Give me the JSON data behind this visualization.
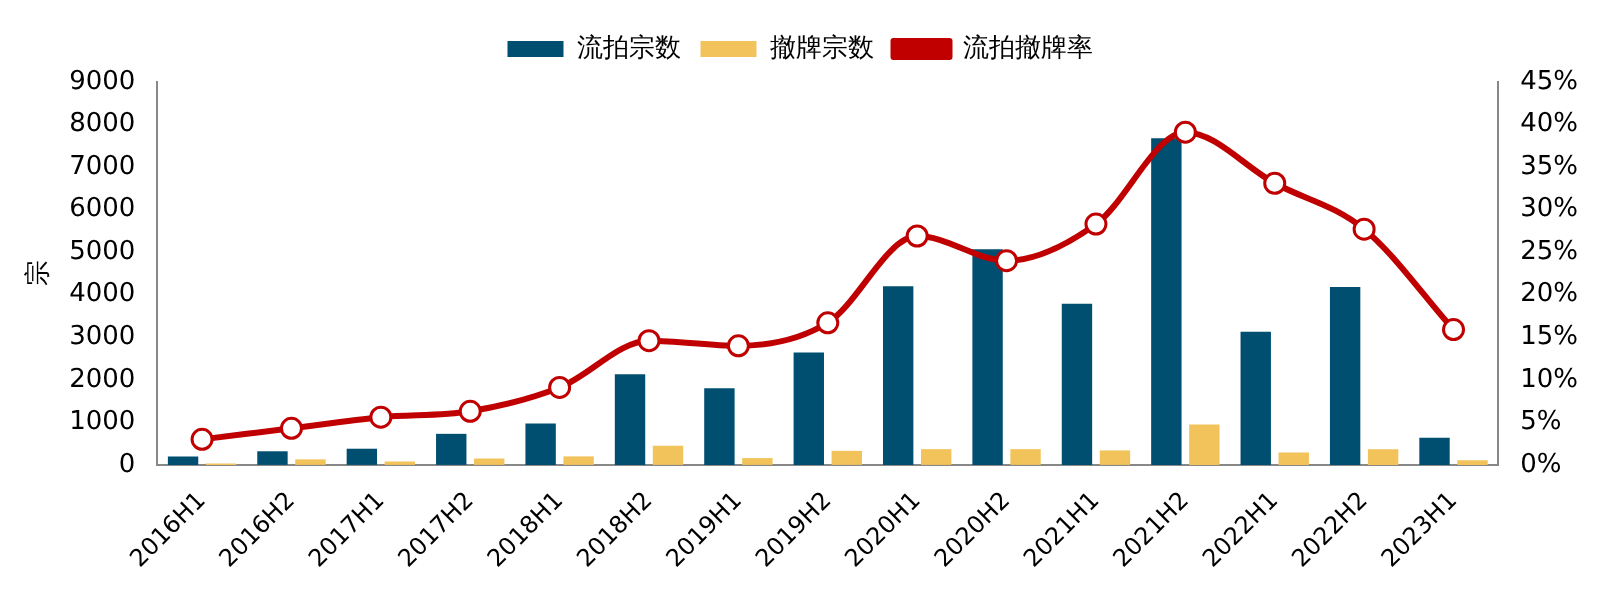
{
  "chart_data": {
    "type": "bar",
    "ylabel": "宗",
    "categories": [
      "2016H1",
      "2016H2",
      "2017H1",
      "2017H2",
      "2018H1",
      "2018H2",
      "2019H1",
      "2019H2",
      "2020H1",
      "2020H2",
      "2021H1",
      "2021H2",
      "2022H1",
      "2022H2",
      "2023H1"
    ],
    "series": [
      {
        "name": "流拍宗数",
        "color": "#004f71",
        "values": [
          200,
          320,
          380,
          730,
          970,
          2130,
          1800,
          2640,
          4200,
          5070,
          3790,
          7680,
          3130,
          4180,
          640
        ]
      },
      {
        "name": "撤牌宗数",
        "color": "#f2c35a",
        "values": [
          30,
          130,
          80,
          150,
          200,
          450,
          160,
          330,
          370,
          370,
          340,
          950,
          290,
          370,
          110
        ]
      },
      {
        "name": "流拍撤牌率",
        "type": "line",
        "axis": "y2",
        "color": "#c00000",
        "marker": "circle",
        "values": [
          3.0,
          4.3,
          5.6,
          6.3,
          9.1,
          14.6,
          14.0,
          16.7,
          26.9,
          24.0,
          28.3,
          39.1,
          33.1,
          27.7,
          15.9
        ]
      }
    ],
    "ylim": [
      0,
      9000
    ],
    "yticks": [
      0,
      1000,
      2000,
      3000,
      4000,
      5000,
      6000,
      7000,
      8000,
      9000
    ],
    "y2lim": [
      0,
      45
    ],
    "y2ticks": [
      {
        "value": 0,
        "label": "0%"
      },
      {
        "value": 5,
        "label": "5%"
      },
      {
        "value": 10,
        "label": "10%"
      },
      {
        "value": 15,
        "label": "15%"
      },
      {
        "value": 20,
        "label": "20%"
      },
      {
        "value": 25,
        "label": "25%"
      },
      {
        "value": 30,
        "label": "30%"
      },
      {
        "value": 35,
        "label": "35%"
      },
      {
        "value": 40,
        "label": "40%"
      },
      {
        "value": 45,
        "label": "45%"
      }
    ],
    "grid": false,
    "legend": "top"
  }
}
